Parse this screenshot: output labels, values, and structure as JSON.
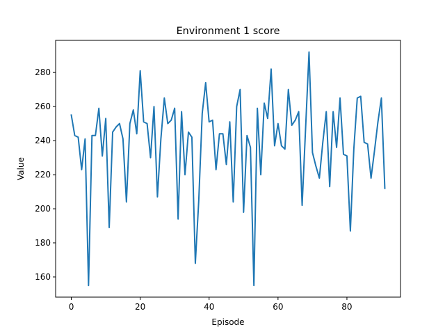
{
  "chart_data": {
    "type": "line",
    "title": "Environment 1 score",
    "xlabel": "Episode",
    "ylabel": "Value",
    "xlim": [
      -4.55,
      95.55
    ],
    "ylim": [
      148.15,
      298.85
    ],
    "xticks": [
      0,
      20,
      40,
      60,
      80
    ],
    "yticks": [
      160,
      180,
      200,
      220,
      240,
      260,
      280
    ],
    "grid": false,
    "color": "#1f77b4",
    "series": [
      {
        "x": [
          0,
          1,
          2,
          3,
          4,
          5,
          6,
          7,
          8,
          9,
          10,
          11,
          12,
          13,
          14,
          15,
          16,
          17,
          18,
          19,
          20,
          21,
          22,
          23,
          24,
          25,
          26,
          27,
          28,
          29,
          30,
          31,
          32,
          33,
          34,
          35,
          36,
          37,
          38,
          39,
          40,
          41,
          42,
          43,
          44,
          45,
          46,
          47,
          48,
          49,
          50,
          51,
          52,
          53,
          54,
          55,
          56,
          57,
          58,
          59,
          60,
          61,
          62,
          63,
          64,
          65,
          66,
          67,
          68,
          69,
          70,
          71,
          72,
          73,
          74,
          75,
          76,
          77,
          78,
          79,
          80,
          81,
          82,
          83,
          84,
          85,
          86,
          87,
          88,
          89,
          90,
          91
        ],
        "values": [
          255,
          243,
          242,
          223,
          241,
          155,
          243,
          243,
          259,
          231,
          253,
          189,
          245,
          248,
          250,
          241,
          204,
          250,
          258,
          244,
          281,
          251,
          250,
          230,
          260,
          207,
          241,
          265,
          250,
          252,
          259,
          194,
          257,
          220,
          245,
          242,
          168,
          205,
          256,
          274,
          251,
          252,
          223,
          244,
          244,
          226,
          251,
          204,
          260,
          270,
          198,
          243,
          236,
          155,
          259,
          220,
          262,
          253,
          282,
          237,
          250,
          237,
          235,
          270,
          249,
          252,
          257,
          202,
          247,
          292,
          233,
          225,
          218,
          239,
          257,
          213,
          257,
          236,
          265,
          232,
          231,
          187,
          235,
          265,
          266,
          239,
          238,
          218,
          234,
          251,
          265,
          212
        ]
      }
    ]
  }
}
